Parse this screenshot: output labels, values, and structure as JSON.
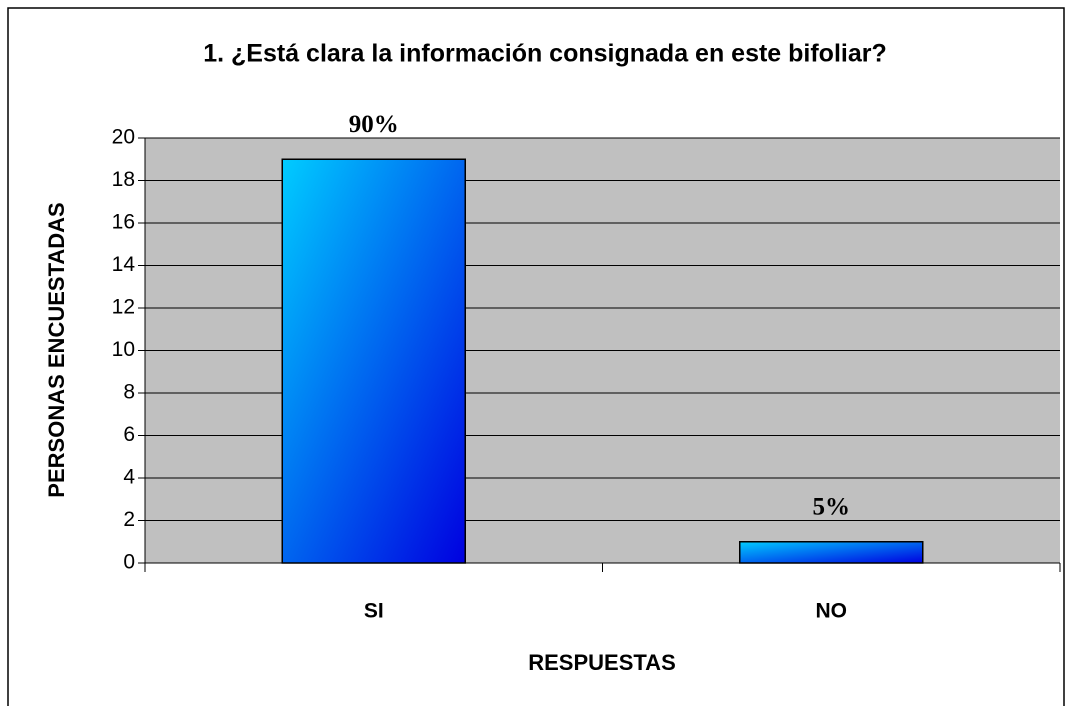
{
  "chart_data": {
    "type": "bar",
    "title": "1. ¿Está clara la información consignada en este bifoliar?",
    "x_label": "RESPUESTAS",
    "y_label": "PERSONAS ENCUESTADAS",
    "categories": [
      "SI",
      "NO"
    ],
    "values": [
      19,
      1
    ],
    "annotations": [
      "90%",
      "5%"
    ],
    "ylim": [
      0,
      20
    ],
    "yticks": [
      0,
      2,
      4,
      6,
      8,
      10,
      12,
      14,
      16,
      18,
      20
    ],
    "grid": true,
    "color": "#00ccff",
    "color_end": "#0000e0",
    "plot_background": "#c0c0c0"
  }
}
